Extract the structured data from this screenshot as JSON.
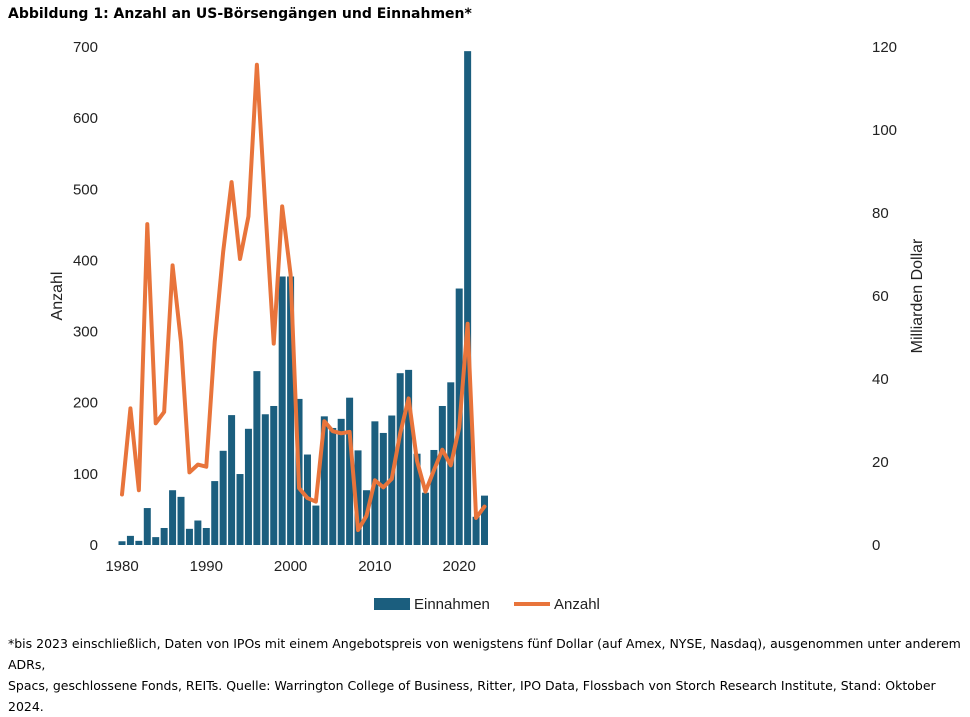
{
  "title": "Abbildung 1: Anzahl an US-Börsengängen und Einnahmen*",
  "footnote": {
    "line1": "*bis 2023 einschließlich, Daten von IPOs mit einem Angebotspreis von wenigstens fünf Dollar (auf Amex, NYSE, Nasdaq), ausgenommen unter anderem ADRs,",
    "line2": "Spacs, geschlossene Fonds, REITs. Quelle: Warrington College of Business, Ritter, IPO Data, Flossbach von Storch Research Institute, Stand: Oktober 2024."
  },
  "chart_data": {
    "type": "bar+line",
    "years": [
      1980,
      1981,
      1982,
      1983,
      1984,
      1985,
      1986,
      1987,
      1988,
      1989,
      1990,
      1991,
      1992,
      1993,
      1994,
      1995,
      1996,
      1997,
      1998,
      1999,
      2000,
      2001,
      2002,
      2003,
      2004,
      2005,
      2006,
      2007,
      2008,
      2009,
      2010,
      2011,
      2012,
      2013,
      2014,
      2015,
      2016,
      2017,
      2018,
      2019,
      2020,
      2021,
      2022,
      2023
    ],
    "series": [
      {
        "name": "Einnahmen",
        "axis": "right",
        "kind": "bar",
        "color": "#1b5e7e",
        "values": [
          0.9,
          2.2,
          1.0,
          8.9,
          1.9,
          4.1,
          13.2,
          11.6,
          3.9,
          5.9,
          4.1,
          15.4,
          22.7,
          31.3,
          17.1,
          28.0,
          41.9,
          31.5,
          33.5,
          64.7,
          64.7,
          35.2,
          21.8,
          9.5,
          31.0,
          28.2,
          30.4,
          35.5,
          22.8,
          13.2,
          29.8,
          27.0,
          31.2,
          41.4,
          42.2,
          22.0,
          12.6,
          22.9,
          33.5,
          39.2,
          61.8,
          119.0,
          6.8,
          11.9
        ]
      },
      {
        "name": "Anzahl",
        "axis": "left",
        "kind": "line",
        "color": "#e8743b",
        "values": [
          71,
          192,
          77,
          451,
          171,
          187,
          393,
          285,
          102,
          113,
          110,
          286,
          412,
          510,
          402,
          462,
          675,
          474,
          283,
          476,
          380,
          80,
          66,
          61,
          174,
          160,
          157,
          159,
          21,
          41,
          91,
          81,
          93,
          157,
          206,
          118,
          75,
          105,
          134,
          112,
          165,
          311,
          38,
          54
        ]
      }
    ],
    "xlabel": "",
    "ylabel_left": "Anzahl",
    "ylabel_right": "Milliarden Dollar",
    "ylim_left": [
      0,
      700
    ],
    "ylim_right": [
      0,
      120
    ],
    "yticks_left": [
      "0",
      "100",
      "200",
      "300",
      "400",
      "500",
      "600",
      "700"
    ],
    "yticks_right": [
      "0",
      "20",
      "40",
      "60",
      "80",
      "100",
      "120"
    ],
    "xticks": [
      "1980",
      "1990",
      "2000",
      "2010",
      "2020"
    ],
    "legend": [
      "Einnahmen",
      "Anzahl"
    ],
    "legend_position": "bottom-center",
    "grid": false
  }
}
